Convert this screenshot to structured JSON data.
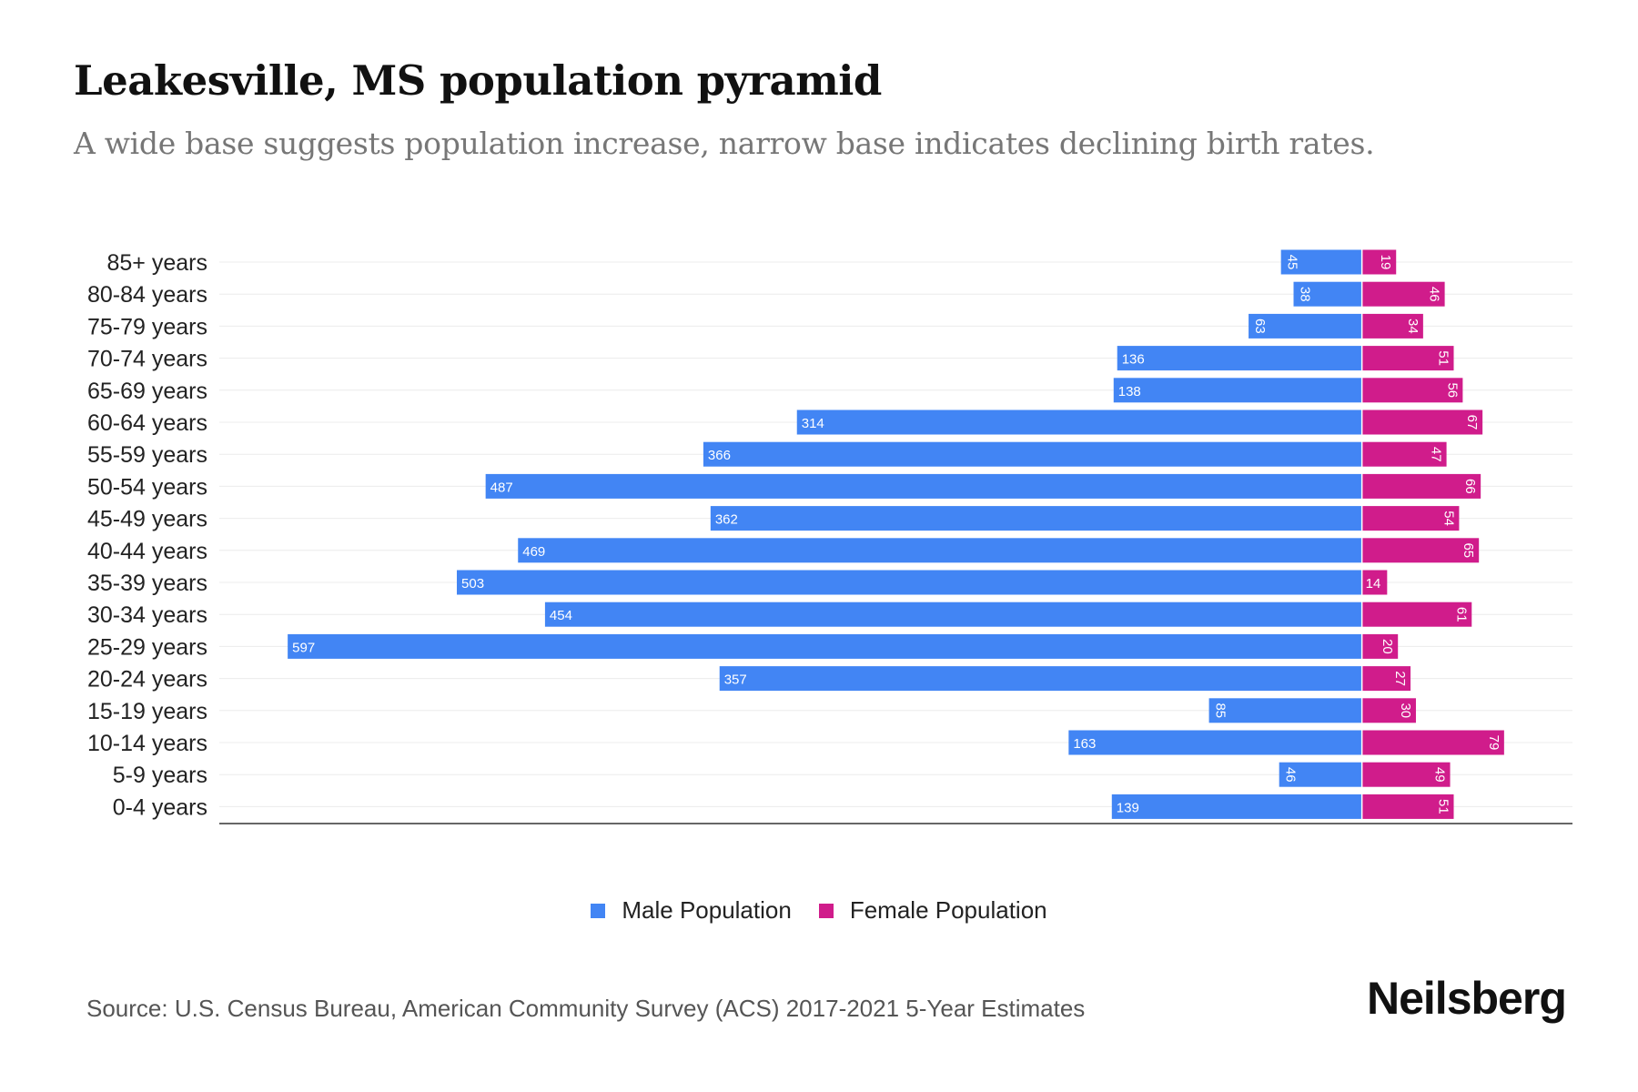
{
  "header": {
    "title": "Leakesville, MS population pyramid",
    "subtitle": "A wide base suggests population increase, narrow base indicates declining birth rates."
  },
  "chart_data": {
    "type": "bar",
    "orientation": "horizontal-pyramid",
    "categories": [
      "85+ years",
      "80-84 years",
      "75-79 years",
      "70-74 years",
      "65-69 years",
      "60-64 years",
      "55-59 years",
      "50-54 years",
      "45-49 years",
      "40-44 years",
      "35-39 years",
      "30-34 years",
      "25-29 years",
      "20-24 years",
      "15-19 years",
      "10-14 years",
      "5-9 years",
      "0-4 years"
    ],
    "series": [
      {
        "name": "Male Population",
        "color": "#4285f4",
        "values": [
          45,
          38,
          63,
          136,
          138,
          314,
          366,
          487,
          362,
          469,
          503,
          454,
          597,
          357,
          85,
          163,
          46,
          139
        ]
      },
      {
        "name": "Female Population",
        "color": "#d01c8b",
        "values": [
          19,
          46,
          34,
          51,
          56,
          67,
          47,
          66,
          54,
          65,
          14,
          61,
          20,
          27,
          30,
          79,
          49,
          51
        ]
      }
    ],
    "xlim": [
      -635,
      117
    ],
    "grid": true,
    "legend": "bottom-center"
  },
  "footer": {
    "source": "Source: U.S. Census Bureau, American Community Survey (ACS) 2017-2021 5-Year Estimates",
    "logo": "Neilsberg"
  }
}
